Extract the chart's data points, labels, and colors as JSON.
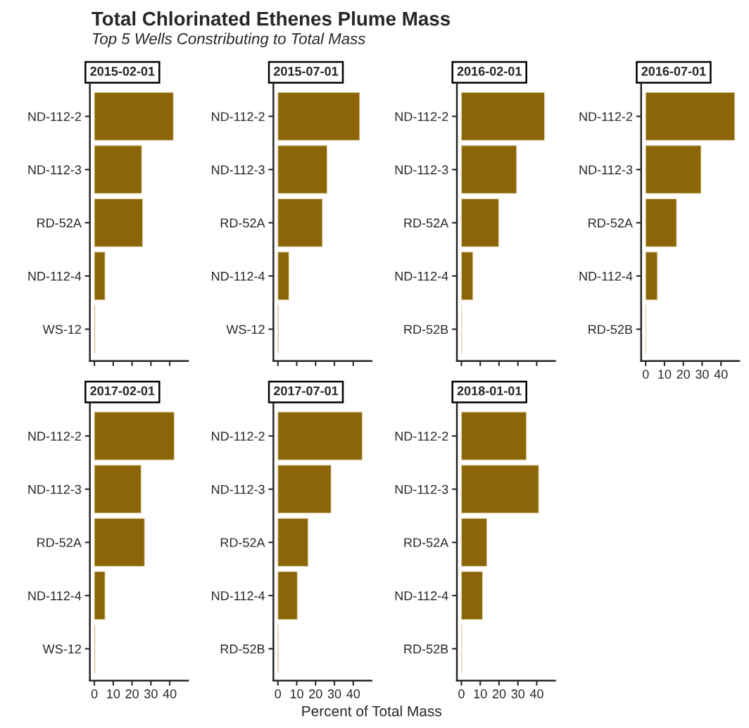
{
  "chart_data": [
    {
      "type": "other",
      "title": "Total Chlorinated Ethenes Plume Mass",
      "subtitle": "Top 5 Wells Constributing to Total Mass"
    },
    {
      "type": "bar",
      "orientation": "horizontal",
      "title": "2015-02-01",
      "categories": [
        "ND-112-2",
        "ND-112-3",
        "RD-52A",
        "ND-112-4",
        "WS-12"
      ],
      "values": [
        41.9,
        25.1,
        25.6,
        5.6,
        0.3
      ],
      "color": "#8b6508",
      "xlim": [
        -2.4,
        49.7
      ],
      "xticks": [
        0,
        10,
        20,
        30,
        40
      ],
      "tick_labels": "y"
    },
    {
      "type": "bar",
      "orientation": "horizontal",
      "title": "2015-07-01",
      "categories": [
        "ND-112-2",
        "ND-112-3",
        "RD-52A",
        "ND-112-4",
        "WS-12"
      ],
      "values": [
        43.4,
        26.1,
        23.6,
        5.8,
        0.3
      ],
      "color": "#8b6508",
      "xlim": [
        -2.4,
        49.7
      ],
      "xticks": [
        0,
        10,
        20,
        30,
        40
      ],
      "tick_labels": "y"
    },
    {
      "type": "bar",
      "orientation": "horizontal",
      "title": "2016-02-01",
      "categories": [
        "ND-112-2",
        "ND-112-3",
        "RD-52A",
        "ND-112-4",
        "RD-52B"
      ],
      "values": [
        44.1,
        29.3,
        19.8,
        6.1,
        0.2
      ],
      "color": "#8b6508",
      "xlim": [
        -2.4,
        49.7
      ],
      "xticks": [
        0,
        10,
        20,
        30,
        40
      ],
      "tick_labels": "y"
    },
    {
      "type": "bar",
      "orientation": "horizontal",
      "title": "2016-07-01",
      "categories": [
        "ND-112-2",
        "ND-112-3",
        "RD-52A",
        "ND-112-4",
        "RD-52B"
      ],
      "values": [
        47.3,
        29.4,
        16.4,
        6.2,
        0.2
      ],
      "color": "#8b6508",
      "xlim": [
        -2.4,
        49.7
      ],
      "xticks": [
        0,
        10,
        20,
        30,
        40
      ]
    },
    {
      "type": "bar",
      "orientation": "horizontal",
      "title": "2017-02-01",
      "categories": [
        "ND-112-2",
        "ND-112-3",
        "RD-52A",
        "ND-112-4",
        "WS-12"
      ],
      "values": [
        42.4,
        24.8,
        26.6,
        5.6,
        0.3
      ],
      "color": "#8b6508",
      "xlim": [
        -2.4,
        49.7
      ],
      "xticks": [
        0,
        10,
        20,
        30,
        40
      ]
    },
    {
      "type": "bar",
      "orientation": "horizontal",
      "title": "2017-07-01",
      "xlabel": "Percent of Total Mass",
      "categories": [
        "ND-112-2",
        "ND-112-3",
        "RD-52A",
        "ND-112-4",
        "RD-52B"
      ],
      "values": [
        44.8,
        28.2,
        16.0,
        10.3,
        0.2
      ],
      "color": "#8b6508",
      "xlim": [
        -2.4,
        49.7
      ],
      "xticks": [
        0,
        10,
        20,
        30,
        40
      ]
    },
    {
      "type": "bar",
      "orientation": "horizontal",
      "title": "2018-01-01",
      "categories": [
        "ND-112-2",
        "ND-112-3",
        "RD-52A",
        "ND-112-4",
        "RD-52B"
      ],
      "values": [
        34.5,
        41.0,
        13.5,
        11.2,
        0.2
      ],
      "color": "#8b6508",
      "xlim": [
        -2.4,
        49.7
      ],
      "xticks": [
        0,
        10,
        20,
        30,
        40
      ]
    }
  ]
}
